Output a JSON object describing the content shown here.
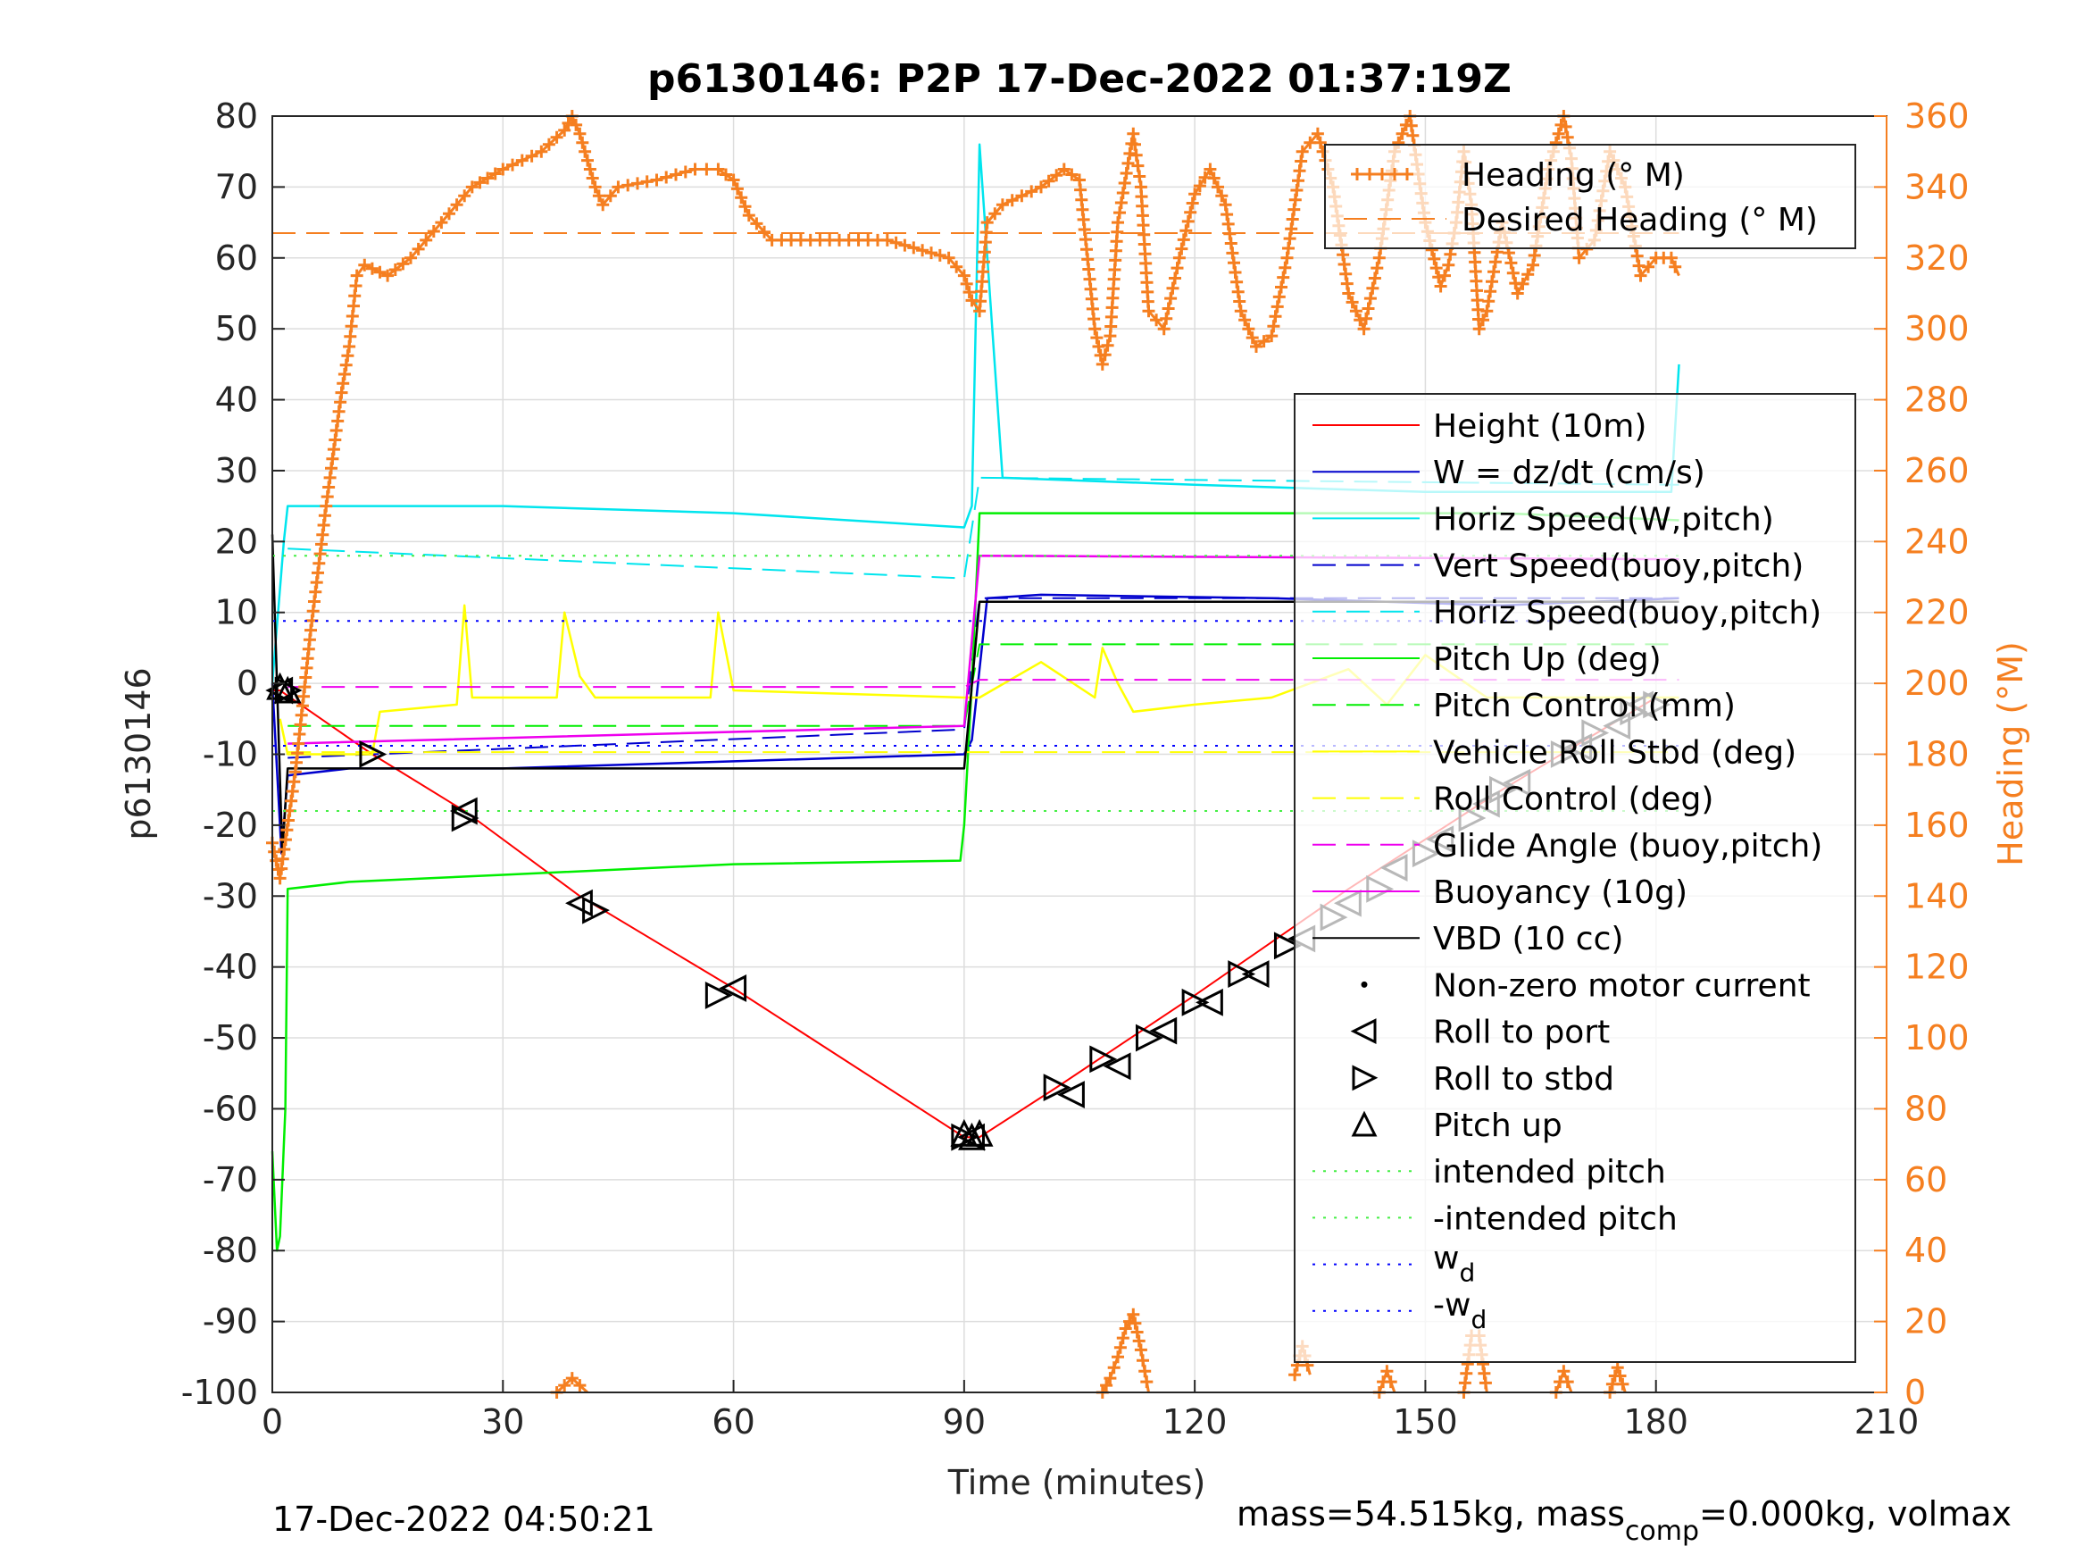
{
  "chart_data": {
    "type": "line",
    "title": "p6130146: P2P 17-Dec-2022 01:37:19Z",
    "xlabel": "Time (minutes)",
    "ylabel": "p6130146",
    "ylabel_right": "Heading (°M)",
    "xlim": [
      0,
      210
    ],
    "ylim": [
      -100,
      80
    ],
    "ylim_right": [
      0,
      360
    ],
    "xticks": [
      "0",
      "30",
      "60",
      "90",
      "120",
      "150",
      "180",
      "210"
    ],
    "yticks": [
      "80",
      "70",
      "60",
      "50",
      "40",
      "30",
      "20",
      "10",
      "0",
      "-10",
      "-20",
      "-30",
      "-40",
      "-50",
      "-60",
      "-70",
      "-80",
      "-90",
      "-100"
    ],
    "yticks_right": [
      "360",
      "340",
      "320",
      "300",
      "280",
      "260",
      "240",
      "220",
      "200",
      "180",
      "160",
      "140",
      "120",
      "100",
      "80",
      "60",
      "40",
      "20",
      "0"
    ],
    "grid": true,
    "footer_left": "17-Dec-2022 04:50:21",
    "footer_right_prefix": "mass=54.515kg, mass",
    "footer_right_sub": "comp",
    "footer_right_suffix": "=0.000kg, volmax",
    "colors": {
      "heading": "#f57f20",
      "height": "#ff0000",
      "w": "#0000cd",
      "horiz_speed": "#00e5ee",
      "pitch": "#00ee00",
      "roll": "#ffff00",
      "glide": "#ee00ee",
      "vbd": "#000000",
      "wd": "#0000ff",
      "intended": "#44ee44"
    },
    "legend_top": {
      "placement": "top-right",
      "entries": [
        "Heading (° M)",
        "Desired Heading (° M)"
      ]
    },
    "legend_main": {
      "placement": "right",
      "entries": [
        "Height (10m)",
        "W = dz/dt (cm/s)",
        "Horiz Speed(W,pitch)",
        "Vert Speed(buoy,pitch)",
        "Horiz Speed(buoy,pitch)",
        "Pitch Up (deg)",
        "Pitch Control (mm)",
        "Vehicle Roll Stbd (deg)",
        "Roll Control (deg)",
        "Glide Angle (buoy,pitch)",
        "Buoyancy (10g)",
        "VBD (10 cc)",
        "Non-zero motor current",
        "Roll to port",
        "Roll to stbd",
        "Pitch up",
        "intended pitch",
        "-intended pitch",
        "w_d",
        "-w_d"
      ]
    },
    "series": [
      {
        "name": "Height (10m)",
        "x": [
          0,
          1,
          13,
          25,
          40,
          60,
          90,
          92,
          102,
          120,
          140,
          160,
          180
        ],
        "y": [
          -1,
          -1,
          -10,
          -18,
          -30,
          -43,
          -64,
          -64,
          -57,
          -44,
          -29,
          -15,
          -2
        ]
      },
      {
        "name": "W = dz/dt (cm/s)",
        "x": [
          0,
          1.2,
          2,
          10,
          30,
          60,
          90,
          91,
          93,
          100,
          130,
          160,
          183
        ],
        "y": [
          0,
          -24,
          -13,
          -12,
          -12,
          -11,
          -10,
          -8,
          12,
          12.5,
          12,
          11,
          12
        ]
      },
      {
        "name": "Horiz Speed(W,pitch)",
        "x": [
          0,
          1.5,
          2,
          10,
          30,
          60,
          90,
          91,
          92,
          95,
          120,
          150,
          182,
          183
        ],
        "y": [
          0,
          20,
          25,
          25,
          25,
          24,
          22,
          25,
          76,
          29,
          28,
          27,
          27,
          45
        ]
      },
      {
        "name": "Vert Speed(buoy,pitch)",
        "x": [
          2,
          90,
          92,
          183
        ],
        "y": [
          -10.5,
          -6.5,
          12,
          12
        ]
      },
      {
        "name": "Horiz Speed(buoy,pitch)",
        "x": [
          2,
          90,
          92,
          183
        ],
        "y": [
          19,
          14.8,
          29,
          28
        ]
      },
      {
        "name": "Pitch Up (deg)",
        "x": [
          0,
          0.6,
          1,
          1.7,
          2,
          10,
          30,
          60,
          89.5,
          90,
          91,
          92,
          120,
          160,
          183
        ],
        "y": [
          -66,
          -80,
          -78,
          -60,
          -29,
          -28,
          -27,
          -25.5,
          -25,
          -20,
          0,
          24,
          24,
          24,
          23
        ]
      },
      {
        "name": "Pitch Control (mm)",
        "x": [
          2,
          90,
          92,
          183
        ],
        "y": [
          -6,
          -6,
          5.5,
          5.5
        ]
      },
      {
        "name": "Vehicle Roll Stbd (deg)",
        "x": [
          1,
          2,
          13,
          14,
          24,
          25,
          26,
          37,
          38,
          40,
          42,
          57,
          58,
          60,
          90,
          92,
          100,
          107,
          108,
          110,
          112,
          120,
          130,
          140,
          145,
          150,
          158,
          183
        ],
        "y": [
          -5,
          -10,
          -10,
          -4,
          -3,
          11,
          -2,
          -2,
          10,
          1,
          -2,
          -2,
          10,
          -1,
          -2,
          -2,
          3,
          -2,
          5,
          0,
          -4,
          -3,
          -2,
          2,
          -3,
          4,
          -2,
          -2
        ]
      },
      {
        "name": "Roll Control (deg)",
        "x": [
          2,
          90,
          92,
          183
        ],
        "y": [
          -9.7,
          -9.7,
          -9.7,
          -9.7
        ]
      },
      {
        "name": "Glide Angle (buoy,pitch)",
        "x": [
          2,
          90,
          92,
          183
        ],
        "y": [
          -0.5,
          -0.5,
          0.5,
          0.5
        ]
      },
      {
        "name": "Buoyancy (10g)",
        "x": [
          2,
          90,
          92,
          183
        ],
        "y": [
          -8.5,
          -6,
          18,
          17.5
        ]
      },
      {
        "name": "VBD (10 cc)",
        "x": [
          0,
          1.3,
          2,
          90,
          92,
          183
        ],
        "y": [
          21,
          -24,
          -12,
          -12,
          11.5,
          11.5
        ]
      },
      {
        "name": "Heading (° M)",
        "axis": "right",
        "x": [
          0,
          1,
          3,
          5,
          7,
          9,
          10,
          11,
          12,
          15,
          18,
          20,
          22,
          24,
          26,
          30,
          35,
          38,
          39,
          40,
          42,
          43,
          45,
          50,
          55,
          58,
          60,
          62,
          65,
          70,
          80,
          88,
          90,
          91,
          92,
          93,
          95,
          100,
          103,
          105,
          107,
          108,
          109,
          110,
          112,
          113,
          114,
          116,
          118,
          120,
          122,
          124,
          126,
          128,
          130,
          132,
          134,
          136,
          138,
          140,
          142,
          144,
          146,
          148,
          150,
          152,
          153,
          154,
          155,
          156,
          157,
          158,
          160,
          162,
          164,
          166,
          168,
          169,
          170,
          172,
          174,
          176,
          178,
          180,
          182,
          183
        ],
        "y": [
          155,
          145,
          175,
          215,
          250,
          282,
          295,
          315,
          318,
          315,
          320,
          325,
          330,
          335,
          340,
          345,
          350,
          356,
          360,
          355,
          340,
          335,
          340,
          342,
          345,
          345,
          342,
          332,
          325,
          325,
          325,
          320,
          315,
          308,
          305,
          330,
          335,
          340,
          345,
          342,
          300,
          290,
          298,
          330,
          355,
          340,
          305,
          300,
          320,
          338,
          345,
          335,
          305,
          295,
          298,
          320,
          350,
          355,
          340,
          310,
          300,
          320,
          350,
          360,
          330,
          312,
          318,
          330,
          350,
          335,
          300,
          305,
          330,
          310,
          318,
          345,
          360,
          348,
          320,
          325,
          350,
          340,
          315,
          320,
          320,
          315
        ]
      },
      {
        "name": "Heading (° M)",
        "axis": "right",
        "x": [
          37,
          38,
          39,
          40,
          41
        ],
        "y": [
          0,
          2,
          4,
          2,
          0
        ]
      },
      {
        "name": "Heading (° M)",
        "axis": "right",
        "x": [
          108,
          109,
          110,
          111,
          112,
          113,
          114
        ],
        "y": [
          0,
          4,
          10,
          18,
          22,
          12,
          0
        ]
      },
      {
        "name": "Heading (° M)",
        "axis": "right",
        "x": [
          133,
          134,
          135
        ],
        "y": [
          5,
          13,
          5
        ]
      },
      {
        "name": "Heading (° M)",
        "axis": "right",
        "x": [
          144,
          145,
          146
        ],
        "y": [
          0,
          6,
          0
        ]
      },
      {
        "name": "Heading (° M)",
        "axis": "right",
        "x": [
          155,
          156,
          157,
          158
        ],
        "y": [
          0,
          16,
          16,
          0
        ]
      },
      {
        "name": "Heading (° M)",
        "axis": "right",
        "x": [
          167,
          168,
          169
        ],
        "y": [
          0,
          6,
          0
        ]
      },
      {
        "name": "Heading (° M)",
        "axis": "right",
        "x": [
          174,
          175,
          176
        ],
        "y": [
          0,
          7,
          0
        ]
      },
      {
        "name": "Desired Heading (° M)",
        "axis": "right",
        "x": [
          0,
          183
        ],
        "y": [
          327,
          327
        ]
      },
      {
        "name": "intended pitch",
        "x": [
          0,
          183
        ],
        "y": [
          18,
          18
        ]
      },
      {
        "name": "-intended pitch",
        "x": [
          0,
          183
        ],
        "y": [
          -18,
          -18
        ]
      },
      {
        "name": "w_d",
        "x": [
          0,
          183
        ],
        "y": [
          8.8,
          8.8
        ]
      },
      {
        "name": "-w_d",
        "x": [
          0,
          183
        ],
        "y": [
          -8.8,
          -8.8
        ]
      }
    ],
    "markers": {
      "roll_to_port": {
        "x": [
          1,
          25,
          40,
          60,
          91,
          104,
          110,
          116,
          122,
          128,
          134,
          140,
          146,
          152,
          158,
          162,
          170,
          175,
          178
        ],
        "y": [
          -1,
          -18,
          -31,
          -43,
          -64,
          -58,
          -54,
          -49,
          -45,
          -41,
          -36,
          -31,
          -26,
          -22,
          -17,
          -14,
          -9,
          -6,
          -3
        ]
      },
      "roll_to_stbd": {
        "x": [
          2,
          13,
          25,
          42,
          58,
          90,
          102,
          108,
          114,
          120,
          126,
          132,
          138,
          144,
          150,
          156,
          160,
          168,
          172,
          177,
          180
        ],
        "y": [
          -1,
          -10,
          -19,
          -32,
          -44,
          -64,
          -57,
          -53,
          -50,
          -45,
          -41,
          -37,
          -33,
          -29,
          -24,
          -19,
          -15,
          -10,
          -7,
          -4,
          -3
        ]
      },
      "pitch_up": {
        "x": [
          1,
          2,
          90,
          91,
          92
        ],
        "y": [
          -0.5,
          -1,
          -63.5,
          -64,
          -63.5
        ]
      }
    }
  }
}
